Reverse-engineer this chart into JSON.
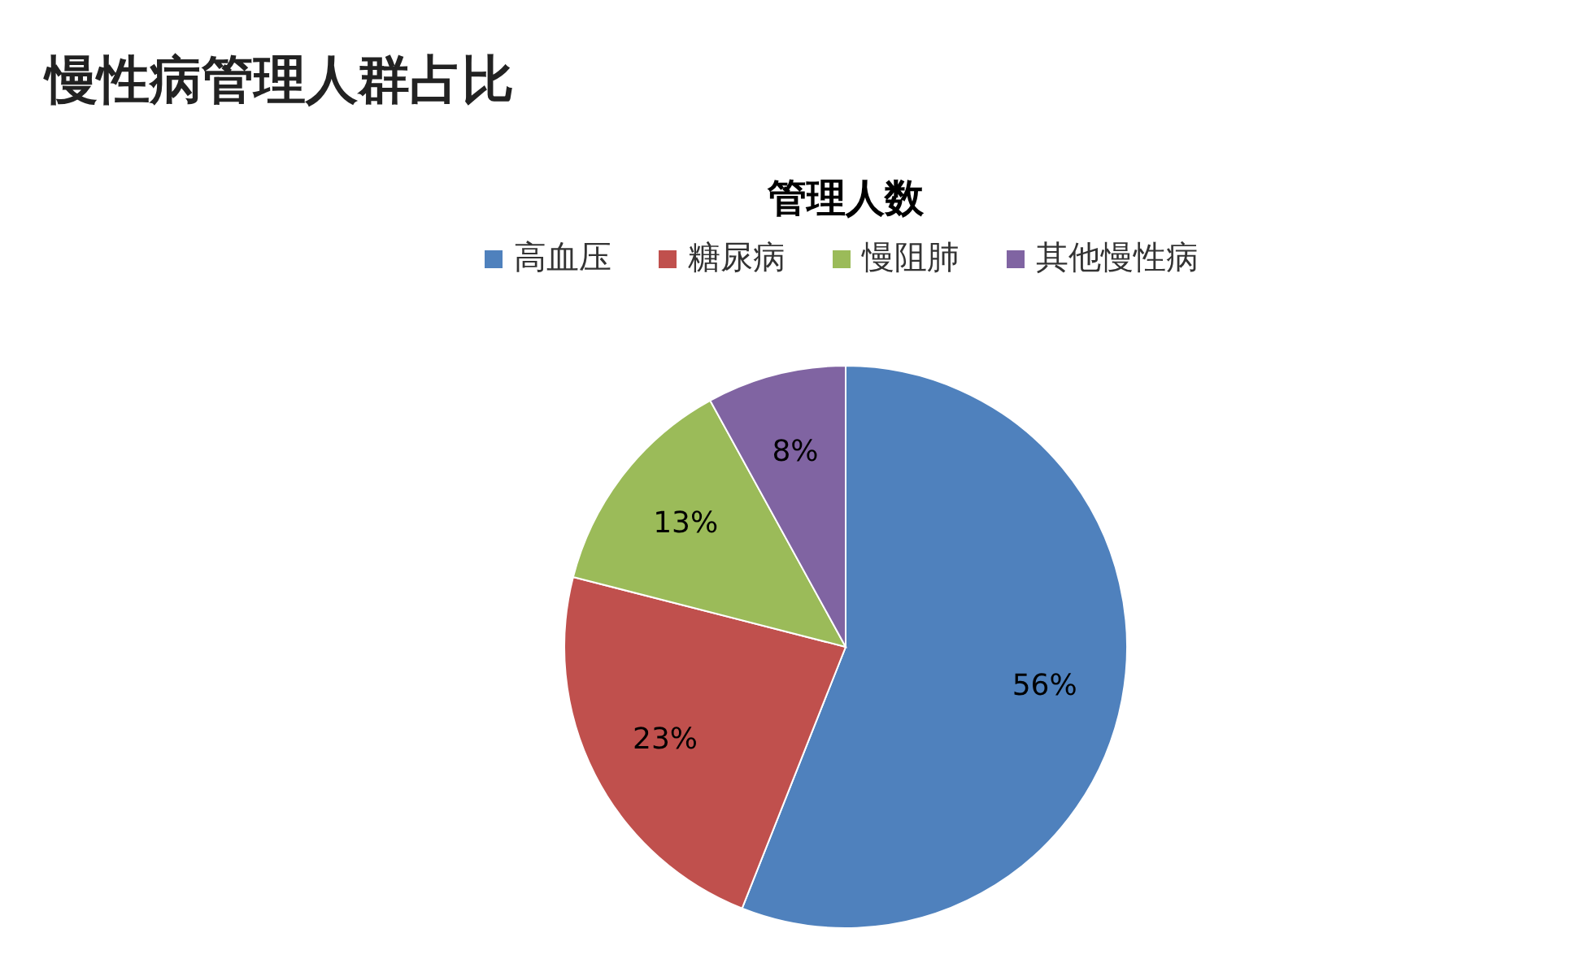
{
  "chart_data": {
    "type": "pie",
    "title": "慢性病管理人群占比",
    "subtitle": "管理人数",
    "categories": [
      "高血压",
      "糖尿病",
      "慢阻肺",
      "其他慢性病"
    ],
    "values": [
      56,
      23,
      13,
      8
    ],
    "colors": [
      "#4f81bd",
      "#c0504d",
      "#9bbb59",
      "#8064a2"
    ],
    "value_labels": [
      "56%",
      "23%",
      "13%",
      "8%"
    ],
    "legend": "top"
  }
}
